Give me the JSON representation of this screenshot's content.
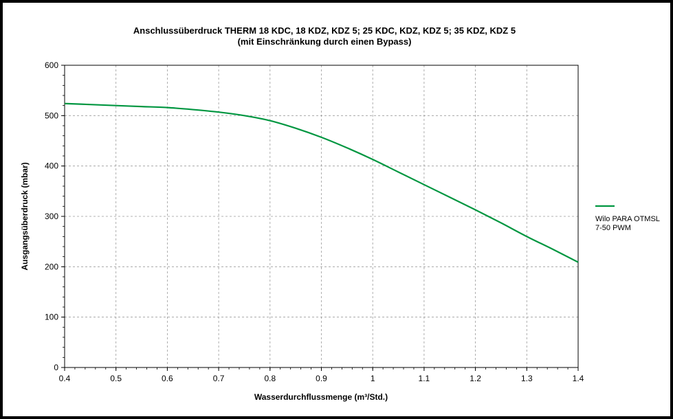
{
  "chart_data": {
    "type": "line",
    "title": "Anschlussüberdruck THERM 18 KDC, 18 KDZ, KDZ 5; 25 KDC, KDZ, KDZ 5; 35 KDZ, KDZ 5",
    "subtitle": "(mit Einschränkung durch einen Bypass)",
    "xlabel": "Wasserdurchflussmenge (m³/Std.)",
    "ylabel": "Ausgangsüberdruck (mbar)",
    "xlim": [
      0.4,
      1.4
    ],
    "ylim": [
      0,
      600
    ],
    "xticks": [
      "0.4",
      "0.5",
      "0.6",
      "0.7",
      "0.8",
      "0.9",
      "1",
      "1.1",
      "1.2",
      "1.3",
      "1.4"
    ],
    "yticks": [
      "0",
      "100",
      "200",
      "300",
      "400",
      "500",
      "600"
    ],
    "grid": true,
    "legend_position": "right",
    "series": [
      {
        "name": "Wilo PARA OTMSL 7-50 PWM",
        "legend_lines": [
          "Wilo PARA OTMSL",
          "7-50 PWM"
        ],
        "color": "#009640",
        "x": [
          0.4,
          0.45,
          0.5,
          0.55,
          0.6,
          0.65,
          0.7,
          0.75,
          0.8,
          0.85,
          0.9,
          0.95,
          1.0,
          1.05,
          1.1,
          1.15,
          1.2,
          1.25,
          1.3,
          1.35,
          1.4
        ],
        "y": [
          524,
          522,
          520,
          518,
          516,
          512,
          507,
          500,
          490,
          475,
          457,
          436,
          413,
          388,
          363,
          338,
          313,
          287,
          260,
          235,
          209
        ]
      }
    ]
  }
}
